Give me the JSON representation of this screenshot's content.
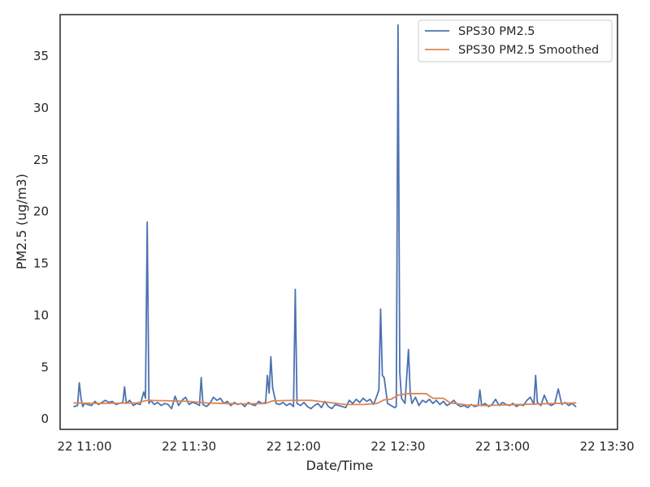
{
  "chart_data": {
    "type": "line",
    "xlabel": "Date/Time",
    "ylabel": "PM2.5 (ug/m3)",
    "xlim": [
      "22 10:53",
      "22 13:33"
    ],
    "ylim": [
      -1,
      39
    ],
    "grid": false,
    "legend_position": "top-right",
    "x_ticks": [
      {
        "label": "22 11:00",
        "minute": 660
      },
      {
        "label": "22 11:30",
        "minute": 690
      },
      {
        "label": "22 12:00",
        "minute": 720
      },
      {
        "label": "22 12:30",
        "minute": 750
      },
      {
        "label": "22 13:00",
        "minute": 780
      },
      {
        "label": "22 13:30",
        "minute": 810
      }
    ],
    "y_ticks": [
      0,
      5,
      10,
      15,
      20,
      25,
      30,
      35
    ],
    "series": [
      {
        "name": "SPS30 PM2.5",
        "color": "#4c72b0",
        "points": [
          [
            "22 10:57",
            1.2
          ],
          [
            "22 10:58",
            1.3
          ],
          [
            "22 10:58.5",
            3.5
          ],
          [
            "22 10:59",
            2.0
          ],
          [
            "22 10:59.5",
            1.2
          ],
          [
            "22 11:00",
            1.5
          ],
          [
            "22 11:01",
            1.4
          ],
          [
            "22 11:02",
            1.3
          ],
          [
            "22 11:03",
            1.7
          ],
          [
            "22 11:04",
            1.4
          ],
          [
            "22 11:05",
            1.6
          ],
          [
            "22 11:06",
            1.8
          ],
          [
            "22 11:07",
            1.6
          ],
          [
            "22 11:08",
            1.7
          ],
          [
            "22 11:09",
            1.4
          ],
          [
            "22 11:10",
            1.5
          ],
          [
            "22 11:11",
            1.6
          ],
          [
            "22 11:11.5",
            3.1
          ],
          [
            "22 11:12",
            1.5
          ],
          [
            "22 11:13",
            1.8
          ],
          [
            "22 11:14",
            1.3
          ],
          [
            "22 11:15",
            1.5
          ],
          [
            "22 11:16",
            1.4
          ],
          [
            "22 11:17",
            2.6
          ],
          [
            "22 11:17.5",
            2.0
          ],
          [
            "22 11:18",
            19.0
          ],
          [
            "22 11:18.5",
            1.5
          ],
          [
            "22 11:19",
            1.8
          ],
          [
            "22 11:20",
            1.4
          ],
          [
            "22 11:21",
            1.6
          ],
          [
            "22 11:22",
            1.3
          ],
          [
            "22 11:23",
            1.5
          ],
          [
            "22 11:24",
            1.4
          ],
          [
            "22 11:25",
            1.0
          ],
          [
            "22 11:26",
            2.2
          ],
          [
            "22 11:27",
            1.3
          ],
          [
            "22 11:28",
            1.8
          ],
          [
            "22 11:29",
            2.1
          ],
          [
            "22 11:30",
            1.4
          ],
          [
            "22 11:31",
            1.6
          ],
          [
            "22 11:32",
            1.5
          ],
          [
            "22 11:33",
            1.3
          ],
          [
            "22 11:33.5",
            4.0
          ],
          [
            "22 11:34",
            1.4
          ],
          [
            "22 11:35",
            1.2
          ],
          [
            "22 11:36",
            1.5
          ],
          [
            "22 11:37",
            2.1
          ],
          [
            "22 11:38",
            1.8
          ],
          [
            "22 11:39",
            2.0
          ],
          [
            "22 11:40",
            1.5
          ],
          [
            "22 11:41",
            1.7
          ],
          [
            "22 11:42",
            1.3
          ],
          [
            "22 11:43",
            1.6
          ],
          [
            "22 11:44",
            1.4
          ],
          [
            "22 11:45",
            1.5
          ],
          [
            "22 11:46",
            1.2
          ],
          [
            "22 11:47",
            1.6
          ],
          [
            "22 11:48",
            1.4
          ],
          [
            "22 11:49",
            1.3
          ],
          [
            "22 11:50",
            1.7
          ],
          [
            "22 11:51",
            1.5
          ],
          [
            "22 11:52",
            1.6
          ],
          [
            "22 11:52.5",
            4.2
          ],
          [
            "22 11:53",
            2.5
          ],
          [
            "22 11:53.5",
            6.0
          ],
          [
            "22 11:54",
            3.0
          ],
          [
            "22 11:55",
            1.5
          ],
          [
            "22 11:56",
            1.4
          ],
          [
            "22 11:57",
            1.6
          ],
          [
            "22 11:58",
            1.3
          ],
          [
            "22 11:59",
            1.5
          ],
          [
            "22 12:00",
            1.2
          ],
          [
            "22 12:00.5",
            12.5
          ],
          [
            "22 12:01",
            1.5
          ],
          [
            "22 12:02",
            1.3
          ],
          [
            "22 12:03",
            1.6
          ],
          [
            "22 12:04",
            1.2
          ],
          [
            "22 12:05",
            1.0
          ],
          [
            "22 12:06",
            1.3
          ],
          [
            "22 12:07",
            1.5
          ],
          [
            "22 12:08",
            1.1
          ],
          [
            "22 12:09",
            1.7
          ],
          [
            "22 12:10",
            1.2
          ],
          [
            "22 12:11",
            1.0
          ],
          [
            "22 12:12",
            1.4
          ],
          [
            "22 12:13",
            1.3
          ],
          [
            "22 12:14",
            1.2
          ],
          [
            "22 12:15",
            1.1
          ],
          [
            "22 12:16",
            1.8
          ],
          [
            "22 12:17",
            1.5
          ],
          [
            "22 12:18",
            1.9
          ],
          [
            "22 12:19",
            1.6
          ],
          [
            "22 12:20",
            2.0
          ],
          [
            "22 12:21",
            1.7
          ],
          [
            "22 12:22",
            1.9
          ],
          [
            "22 12:23",
            1.4
          ],
          [
            "22 12:24",
            2.3
          ],
          [
            "22 12:24.5",
            2.8
          ],
          [
            "22 12:25",
            10.6
          ],
          [
            "22 12:25.5",
            4.2
          ],
          [
            "22 12:26",
            4.0
          ],
          [
            "22 12:27",
            1.5
          ],
          [
            "22 12:28",
            1.3
          ],
          [
            "22 12:29",
            1.1
          ],
          [
            "22 12:29.5",
            1.2
          ],
          [
            "22 12:30",
            38.0
          ],
          [
            "22 12:30.5",
            4.5
          ],
          [
            "22 12:31",
            2.0
          ],
          [
            "22 12:32",
            1.5
          ],
          [
            "22 12:33",
            6.7
          ],
          [
            "22 12:33.5",
            2.5
          ],
          [
            "22 12:34",
            1.5
          ],
          [
            "22 12:35",
            2.1
          ],
          [
            "22 12:36",
            1.3
          ],
          [
            "22 12:37",
            1.8
          ],
          [
            "22 12:38",
            1.6
          ],
          [
            "22 12:39",
            1.9
          ],
          [
            "22 12:40",
            1.5
          ],
          [
            "22 12:41",
            1.8
          ],
          [
            "22 12:42",
            1.4
          ],
          [
            "22 12:43",
            1.7
          ],
          [
            "22 12:44",
            1.3
          ],
          [
            "22 12:45",
            1.5
          ],
          [
            "22 12:46",
            1.8
          ],
          [
            "22 12:47",
            1.4
          ],
          [
            "22 12:48",
            1.2
          ],
          [
            "22 12:49",
            1.3
          ],
          [
            "22 12:50",
            1.1
          ],
          [
            "22 12:51",
            1.4
          ],
          [
            "22 12:52",
            1.2
          ],
          [
            "22 12:53",
            1.3
          ],
          [
            "22 12:53.5",
            2.8
          ],
          [
            "22 12:54",
            1.3
          ],
          [
            "22 12:55",
            1.5
          ],
          [
            "22 12:56",
            1.2
          ],
          [
            "22 12:57",
            1.4
          ],
          [
            "22 12:58",
            1.9
          ],
          [
            "22 12:59",
            1.3
          ],
          [
            "22 13:00",
            1.6
          ],
          [
            "22 13:01",
            1.4
          ],
          [
            "22 13:02",
            1.3
          ],
          [
            "22 13:03",
            1.5
          ],
          [
            "22 13:04",
            1.2
          ],
          [
            "22 13:05",
            1.4
          ],
          [
            "22 13:06",
            1.3
          ],
          [
            "22 13:07",
            1.8
          ],
          [
            "22 13:08",
            2.1
          ],
          [
            "22 13:09",
            1.4
          ],
          [
            "22 13:09.5",
            4.2
          ],
          [
            "22 13:10",
            1.6
          ],
          [
            "22 13:11",
            1.3
          ],
          [
            "22 13:12",
            2.3
          ],
          [
            "22 13:13",
            1.5
          ],
          [
            "22 13:14",
            1.3
          ],
          [
            "22 13:15",
            1.5
          ],
          [
            "22 13:16",
            2.9
          ],
          [
            "22 13:17",
            1.4
          ],
          [
            "22 13:18",
            1.6
          ],
          [
            "22 13:19",
            1.3
          ],
          [
            "22 13:20",
            1.5
          ],
          [
            "22 13:21",
            1.2
          ]
        ]
      },
      {
        "name": "SPS30 PM2.5 Smoothed",
        "color": "#dd8452",
        "points": [
          [
            "22 10:57",
            1.55
          ],
          [
            "22 11:05",
            1.5
          ],
          [
            "22 11:15",
            1.55
          ],
          [
            "22 11:18",
            1.8
          ],
          [
            "22 11:25",
            1.75
          ],
          [
            "22 11:30",
            1.7
          ],
          [
            "22 11:35",
            1.55
          ],
          [
            "22 11:45",
            1.45
          ],
          [
            "22 11:52",
            1.5
          ],
          [
            "22 11:54",
            1.75
          ],
          [
            "22 12:00",
            1.8
          ],
          [
            "22 12:05",
            1.8
          ],
          [
            "22 12:10",
            1.6
          ],
          [
            "22 12:15",
            1.4
          ],
          [
            "22 12:20",
            1.4
          ],
          [
            "22 12:24",
            1.5
          ],
          [
            "22 12:26",
            1.85
          ],
          [
            "22 12:28",
            1.9
          ],
          [
            "22 12:30",
            2.3
          ],
          [
            "22 12:33",
            2.45
          ],
          [
            "22 12:38",
            2.45
          ],
          [
            "22 12:40",
            2.0
          ],
          [
            "22 12:43",
            2.0
          ],
          [
            "22 12:45",
            1.55
          ],
          [
            "22 12:50",
            1.35
          ],
          [
            "22 12:55",
            1.3
          ],
          [
            "22 13:00",
            1.35
          ],
          [
            "22 13:05",
            1.4
          ],
          [
            "22 13:10",
            1.45
          ],
          [
            "22 13:15",
            1.5
          ],
          [
            "22 13:21",
            1.55
          ]
        ]
      }
    ]
  }
}
